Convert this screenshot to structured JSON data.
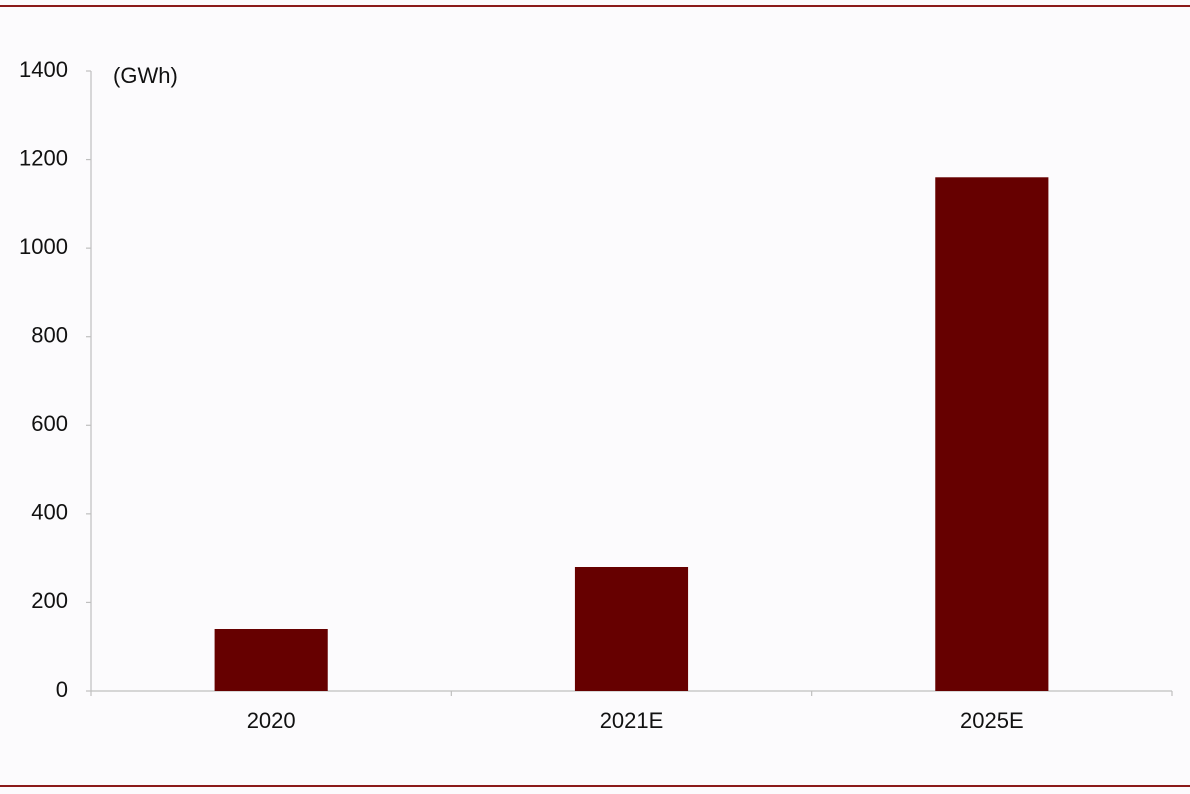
{
  "chart_data": {
    "type": "bar",
    "y_axis_label": "(GWh)",
    "categories": [
      "2020",
      "2021E",
      "2025E"
    ],
    "values": [
      140,
      280,
      1160
    ],
    "color": "#660000",
    "ylim": [
      0,
      1400
    ],
    "yticks": [
      0,
      200,
      400,
      600,
      800,
      1000,
      1200,
      1400
    ],
    "grid": false
  }
}
